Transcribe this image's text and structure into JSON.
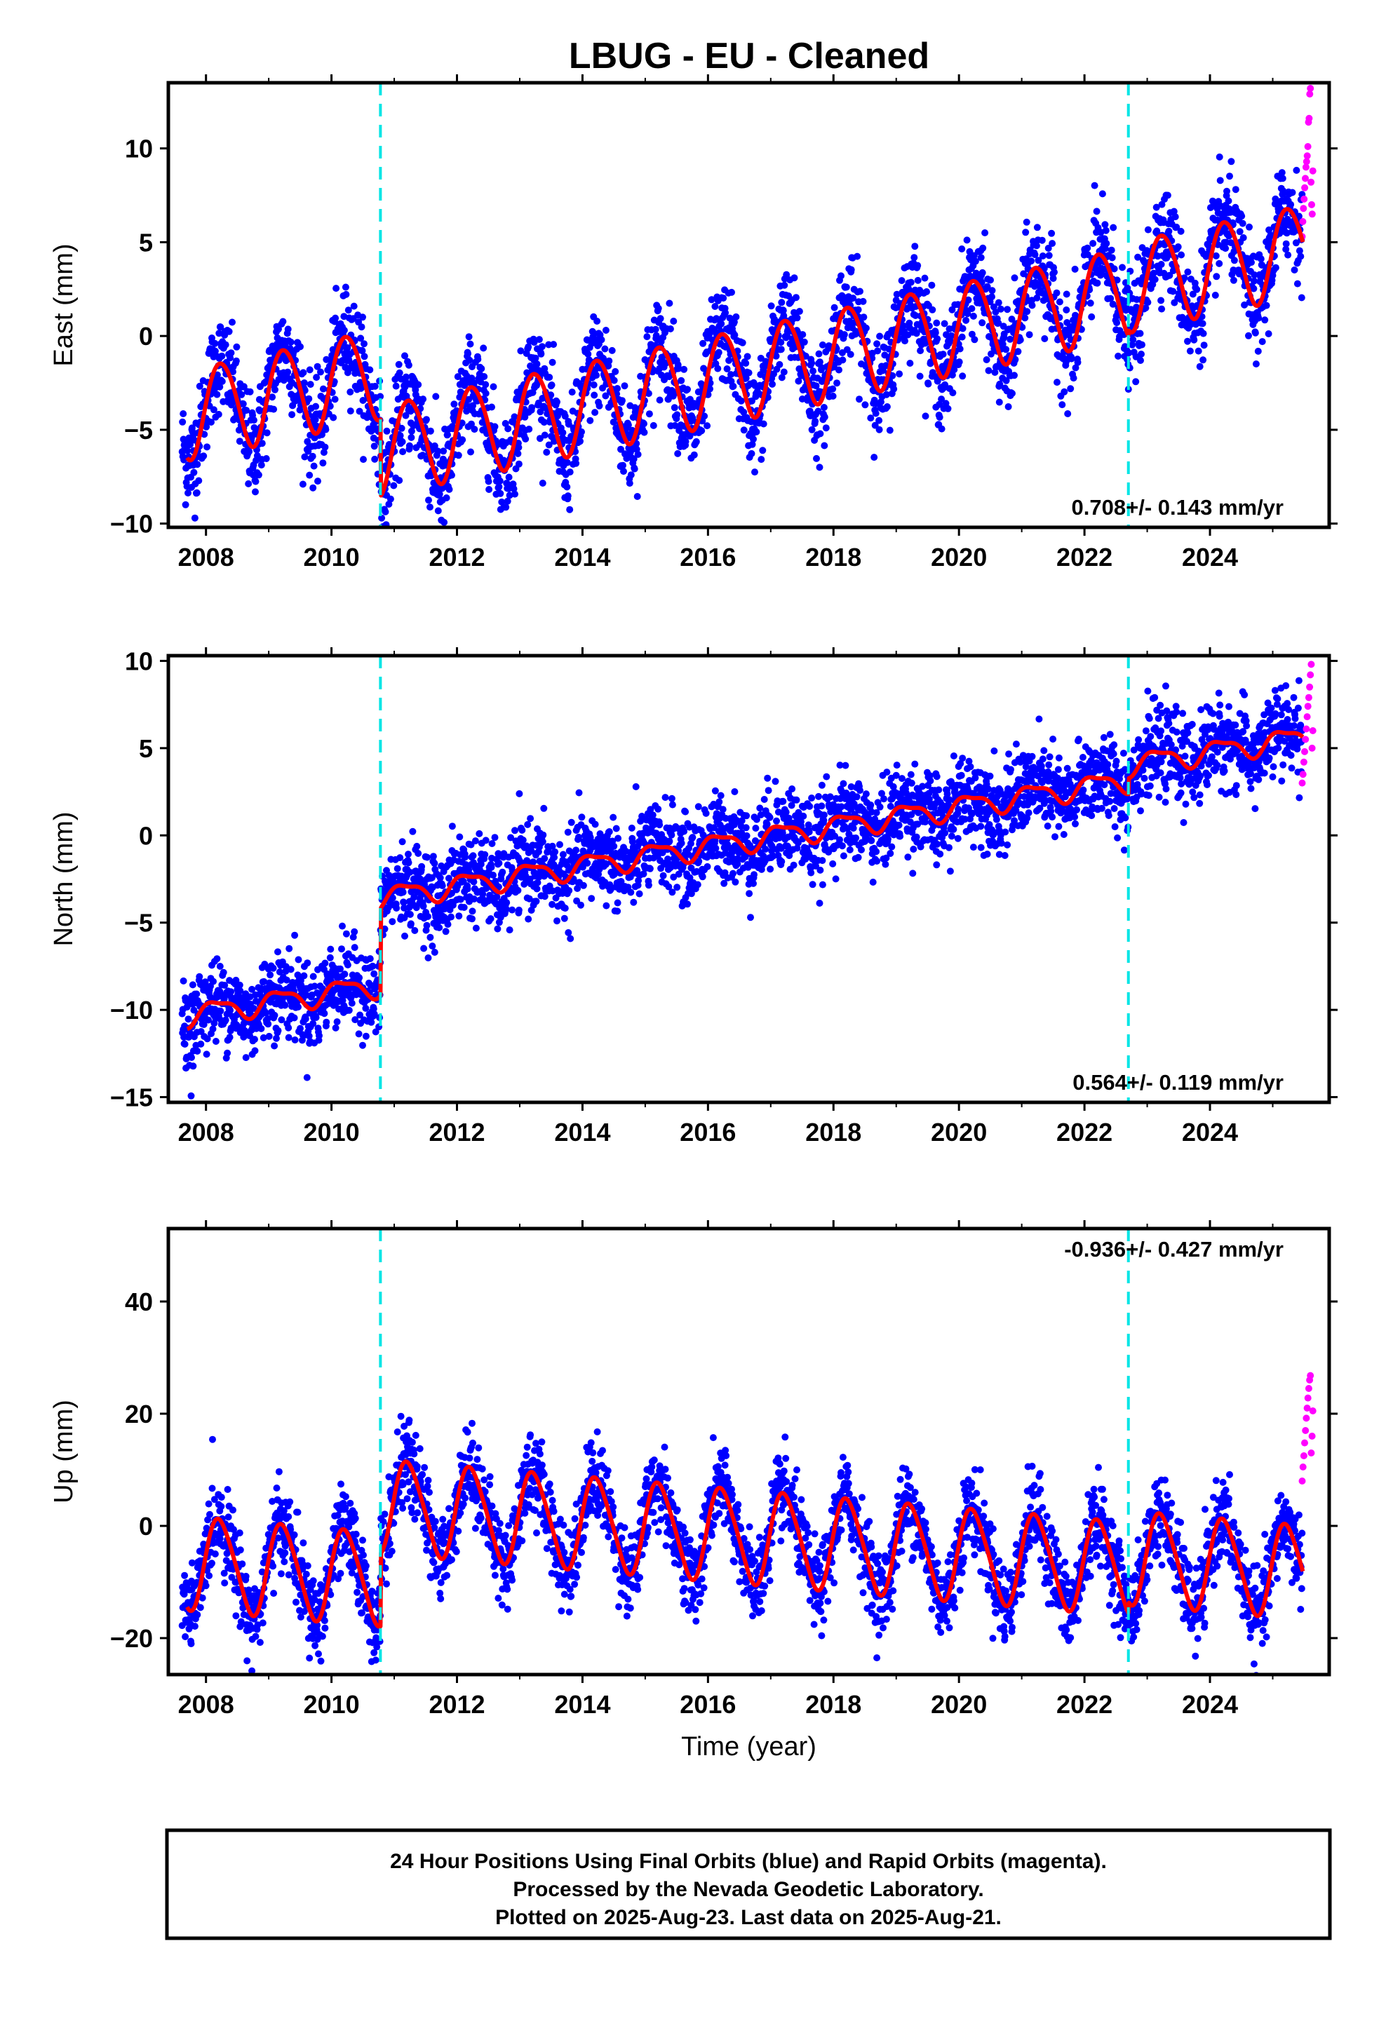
{
  "title": "LBUG  - EU - Cleaned",
  "colors": {
    "final_orbits": "#0000ff",
    "rapid_orbits": "#ff00ff",
    "model_fit": "#ff0000",
    "offset_line": "#00e5e5",
    "frame": "#000000"
  },
  "chart_data": [
    {
      "type": "scatter",
      "component": "east",
      "ylabel": "East (mm)",
      "xlabel": "",
      "xlim": [
        2007.4,
        2025.9
      ],
      "ylim": [
        -10.2,
        13.5
      ],
      "yticks": [
        -10,
        -5,
        0,
        5,
        10
      ],
      "xticks": [
        2008,
        2010,
        2012,
        2014,
        2016,
        2018,
        2020,
        2022,
        2024
      ],
      "rate_text": "0.708+/- 0.143 mm/yr",
      "rate_position": "bottom-right",
      "offset_epochs": [
        2010.78,
        2022.7
      ],
      "model": {
        "intercept_at_2007_7": -4.1,
        "rate_mm_per_yr": 0.708,
        "annual_amplitude": 2.4,
        "annual_phase": 0.05,
        "semiannual_amplitude": 0.2,
        "semiannual_phase": 1.0,
        "offsets": [
          {
            "epoch": 2010.78,
            "mm": -4.1
          },
          {
            "epoch": 2022.7,
            "mm": 0.3
          }
        ]
      },
      "scatter_std_mm": 1.3,
      "final_orbits_range": [
        2007.62,
        2025.47
      ],
      "rapid_orbits_range": [
        2025.47,
        2025.64
      ],
      "rapid_orbits_values": [
        5.3,
        6.1,
        6.8,
        7.3,
        7.9,
        8.4,
        9.0,
        9.3,
        9.6,
        10.1,
        11.4,
        11.6,
        12.9,
        13.2,
        8.2,
        7.0,
        6.5,
        8.8
      ]
    },
    {
      "type": "scatter",
      "component": "north",
      "ylabel": "North (mm)",
      "xlabel": "",
      "xlim": [
        2007.4,
        2025.9
      ],
      "ylim": [
        -15.3,
        10.3
      ],
      "yticks": [
        -15,
        -10,
        -5,
        0,
        5,
        10
      ],
      "xticks": [
        2008,
        2010,
        2012,
        2014,
        2016,
        2018,
        2020,
        2022,
        2024
      ],
      "rate_text": "0.564+/- 0.119 mm/yr",
      "rate_position": "bottom-right",
      "offset_epochs": [
        2010.78,
        2022.7
      ],
      "model": {
        "intercept_at_2007_7": -10.3,
        "rate_mm_per_yr": 0.564,
        "annual_amplitude": 0.6,
        "annual_phase": 0.45,
        "semiannual_amplitude": 0.2,
        "semiannual_phase": 2.0,
        "offsets": [
          {
            "epoch": 2010.78,
            "mm": 5.0
          },
          {
            "epoch": 2022.7,
            "mm": 0.9
          }
        ]
      },
      "scatter_std_mm": 1.2,
      "final_orbits_range": [
        2007.62,
        2025.47
      ],
      "rapid_orbits_range": [
        2025.47,
        2025.64
      ],
      "rapid_orbits_values": [
        3.0,
        3.5,
        4.2,
        4.8,
        5.5,
        6.1,
        6.8,
        7.4,
        7.9,
        8.5,
        9.2,
        9.8,
        5.0,
        6.0
      ]
    },
    {
      "type": "scatter",
      "component": "up",
      "ylabel": "Up (mm)",
      "xlabel": "Time (year)",
      "xlim": [
        2007.4,
        2025.9
      ],
      "ylim": [
        -26.5,
        53
      ],
      "yticks": [
        -20,
        0,
        20,
        40
      ],
      "xticks": [
        2008,
        2010,
        2012,
        2014,
        2016,
        2018,
        2020,
        2022,
        2024
      ],
      "rate_text": "-0.936+/- 0.427 mm/yr",
      "rate_position": "top-right",
      "offset_epochs": [
        2010.78,
        2022.7
      ],
      "model": {
        "intercept_at_2007_7": -6.5,
        "rate_mm_per_yr": -0.936,
        "annual_amplitude": 8.2,
        "annual_phase": 0.15,
        "semiannual_amplitude": 1.0,
        "semiannual_phase": 0.5,
        "offsets": [
          {
            "epoch": 2010.78,
            "mm": 13.0
          },
          {
            "epoch": 2022.7,
            "mm": 2.0
          }
        ]
      },
      "scatter_std_mm": 3.6,
      "final_orbits_range": [
        2007.62,
        2025.47
      ],
      "rapid_orbits_range": [
        2025.47,
        2025.64
      ],
      "rapid_orbits_values": [
        8.0,
        10.5,
        12.5,
        14.8,
        17.0,
        19.2,
        21.0,
        22.8,
        24.5,
        26.0,
        26.8,
        13.0,
        16.0,
        20.5
      ]
    }
  ],
  "footer": {
    "line1": "24 Hour Positions Using Final Orbits (blue) and Rapid Orbits (magenta).",
    "line2": "Processed by the Nevada Geodetic Laboratory.",
    "line3": "Plotted on 2025-Aug-23. Last data on 2025-Aug-21."
  }
}
